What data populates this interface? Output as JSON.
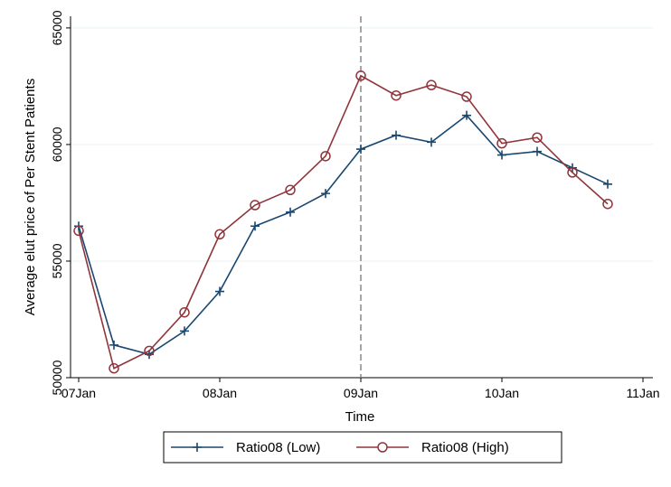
{
  "chart_data": {
    "type": "line",
    "title": "",
    "xlabel": "Time",
    "ylabel": "Average elut price of Per Stent Patients",
    "x": [
      "07Jan Q1",
      "07Jan Q2",
      "07Jan Q3",
      "07Jan Q4",
      "08Jan Q1",
      "08Jan Q2",
      "08Jan Q3",
      "08Jan Q4",
      "09Jan Q1",
      "09Jan Q2",
      "09Jan Q3",
      "09Jan Q4",
      "10Jan Q1",
      "10Jan Q2",
      "10Jan Q3",
      "10Jan Q4"
    ],
    "x_ticks": [
      "07Jan",
      "08Jan",
      "09Jan",
      "10Jan",
      "11Jan"
    ],
    "y_ticks": [
      50000,
      55000,
      60000,
      65000
    ],
    "ylim": [
      50000,
      65500
    ],
    "vline_at": "09Jan",
    "grid": true,
    "legend_position": "bottom",
    "series": [
      {
        "name": "Ratio08 (Low)",
        "color": "#1a476f",
        "marker": "plus",
        "values": [
          56500,
          51400,
          51000,
          52000,
          53700,
          56500,
          57100,
          57900,
          59800,
          60400,
          60100,
          61250,
          59550,
          59700,
          59000,
          58300
        ]
      },
      {
        "name": "Ratio08 (High)",
        "color": "#90353b",
        "marker": "circle",
        "values": [
          56300,
          50400,
          51150,
          52800,
          56150,
          57400,
          58050,
          59500,
          62950,
          62100,
          62550,
          62050,
          60050,
          60300,
          58800,
          57450
        ]
      }
    ]
  }
}
